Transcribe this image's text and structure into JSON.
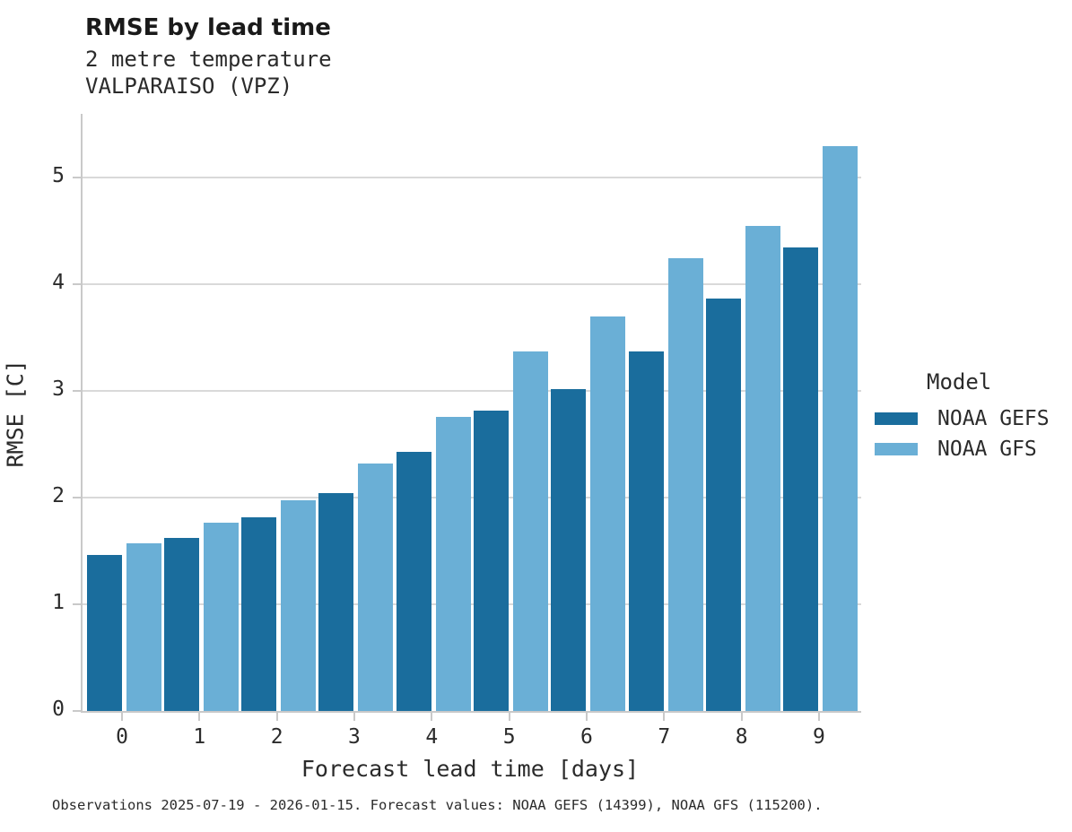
{
  "header": {
    "title": "RMSE by lead time",
    "subtitle_line1": "2 metre temperature",
    "subtitle_line2": "VALPARAISO (VPZ)"
  },
  "chart_data": {
    "type": "bar",
    "title": "RMSE by lead time",
    "subtitle": [
      "2 metre temperature",
      "VALPARAISO (VPZ)"
    ],
    "categories": [
      "0",
      "1",
      "2",
      "3",
      "4",
      "5",
      "6",
      "7",
      "8",
      "9"
    ],
    "series": [
      {
        "name": "NOAA GEFS",
        "color": "#1a6d9d",
        "values": [
          1.46,
          1.62,
          1.82,
          2.04,
          2.43,
          2.82,
          3.02,
          3.37,
          3.87,
          4.35
        ]
      },
      {
        "name": "NOAA GFS",
        "color": "#6aafd6",
        "values": [
          1.57,
          1.77,
          1.98,
          2.32,
          2.76,
          3.37,
          3.7,
          4.25,
          4.55,
          5.3
        ]
      }
    ],
    "xlabel": "Forecast lead time [days]",
    "ylabel": "RMSE [C]",
    "ylim": [
      0,
      5.6
    ],
    "y_ticks": [
      0,
      1,
      2,
      3,
      4,
      5
    ],
    "grid": "horizontal-only",
    "legend": {
      "title": "Model",
      "position": "right-of-plot"
    }
  },
  "footer": {
    "note": "Observations 2025-07-19 - 2026-01-15. Forecast values: NOAA GEFS (14399), NOAA GFS (115200)."
  },
  "style_colors": {
    "series_dark": "#1a6d9d",
    "series_light": "#6aafd6",
    "gridline": "#d9d9d9",
    "spine": "#c9c9c9",
    "text": "#2b2b2b"
  }
}
